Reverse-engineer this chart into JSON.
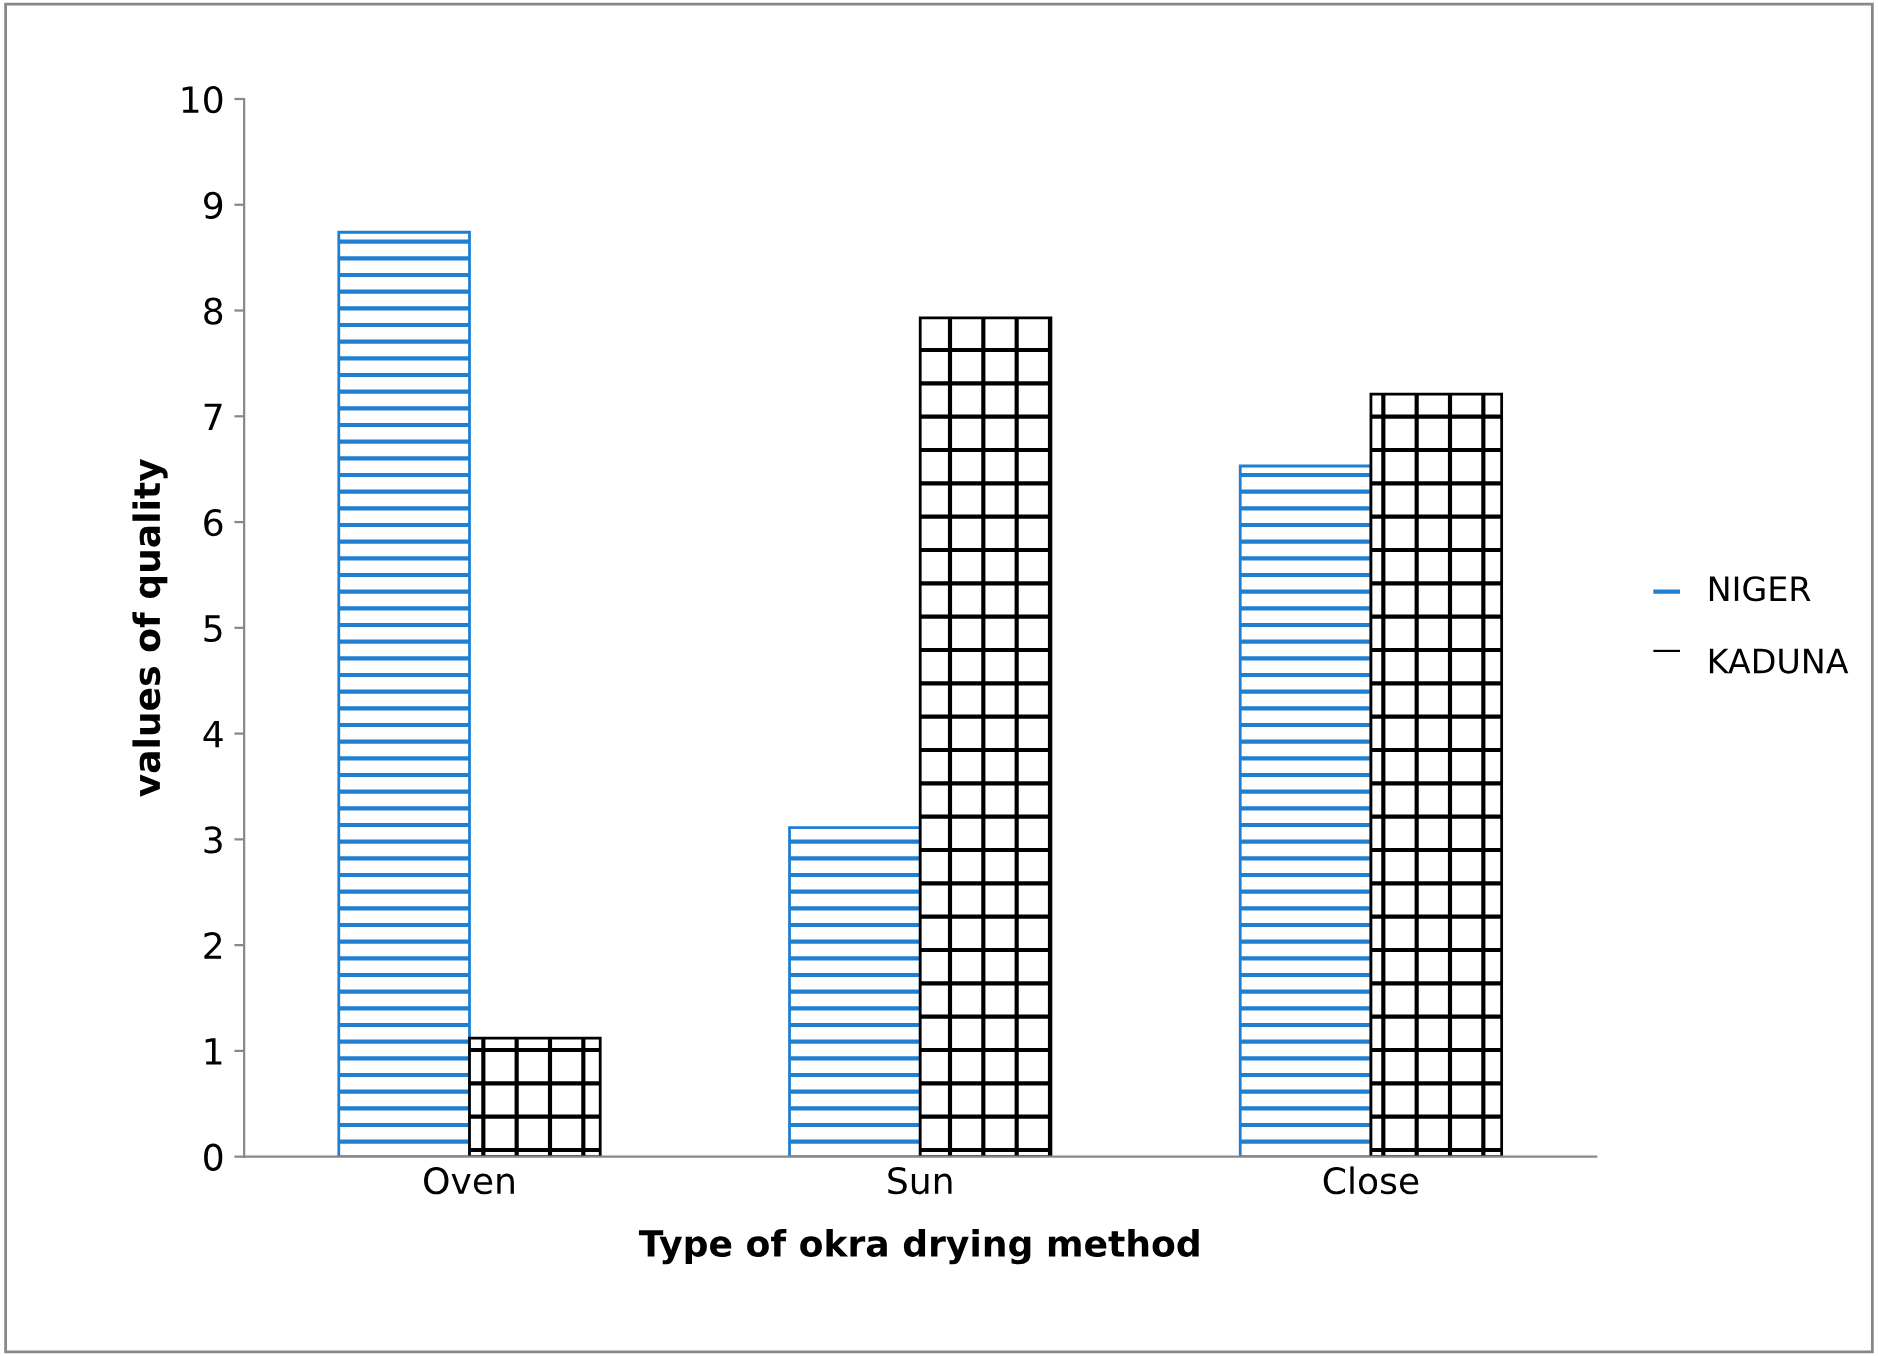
{
  "chart_data": {
    "type": "bar",
    "xlabel": "Type of okra drying method",
    "ylabel": "values of quality",
    "categories": [
      "Oven",
      "Sun",
      "Close"
    ],
    "series": [
      {
        "name": "NIGER",
        "color": "#1f7fd0",
        "values": [
          8.74,
          3.11,
          6.53
        ]
      },
      {
        "name": "KADUNA",
        "color": "#000000",
        "values": [
          1.12,
          7.93,
          7.21
        ]
      }
    ],
    "ylim": [
      0,
      10
    ],
    "yticks": [
      0,
      1,
      2,
      3,
      4,
      5,
      6,
      7,
      8,
      9,
      10
    ],
    "grid": false,
    "legend": "right"
  }
}
